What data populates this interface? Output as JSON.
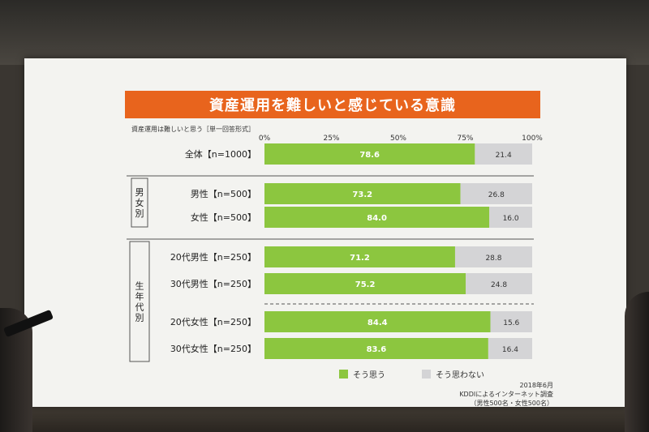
{
  "slide": {
    "title": "資産運用を難しいと感じている意識",
    "question": "資産運用は難しいと思う［単一回答形式］"
  },
  "groups": [
    {
      "label": "男女別"
    },
    {
      "label": "生年代別"
    }
  ],
  "legend": {
    "yes": "そう思う",
    "no": "そう思わない"
  },
  "source": {
    "date": "2018年6月",
    "survey": "KDDIによるインターネット調査",
    "sample": "（男性500名・女性500名）"
  },
  "colors": {
    "yes": "#8cc63f",
    "no": "#d4d4d6",
    "title_bg": "#e8641d"
  },
  "chart_data": {
    "type": "bar",
    "orientation": "horizontal",
    "stacked": true,
    "title": "資産運用を難しいと感じている意識",
    "xlim": [
      0,
      100
    ],
    "ticks": [
      "0%",
      "25%",
      "50%",
      "75%",
      "100%"
    ],
    "categories": [
      "全体【n=1000】",
      "男性【n=500】",
      "女性【n=500】",
      "20代男性【n=250】",
      "30代男性【n=250】",
      "20代女性【n=250】",
      "30代女性【n=250】"
    ],
    "series": [
      {
        "name": "そう思う",
        "values": [
          78.6,
          73.2,
          84.0,
          71.2,
          75.2,
          84.4,
          83.6
        ]
      },
      {
        "name": "そう思わない",
        "values": [
          21.4,
          26.8,
          16.0,
          28.8,
          24.8,
          15.6,
          16.4
        ]
      }
    ],
    "legend": "bottom"
  }
}
